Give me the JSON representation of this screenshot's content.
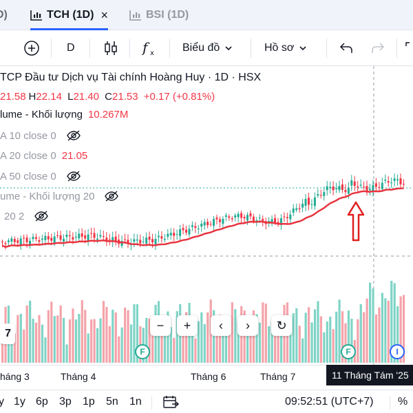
{
  "tabs": [
    {
      "label": "D)",
      "state": "partial"
    },
    {
      "label": "TCH (1D)",
      "state": "active",
      "close": "×"
    },
    {
      "label": "BSI (1D)",
      "state": "inactive"
    }
  ],
  "toolbar": {
    "interval": "D",
    "chart_type_label": "Biểu đồ",
    "profile_label": "Hồ sơ"
  },
  "legend": {
    "title": "TCP Đầu tư Dịch vụ Tài chính Hoàng Huy · 1D · HSX",
    "ohlc": {
      "open_value": "21.58",
      "high_key": "H",
      "high_value": "22.14",
      "low_key": "L",
      "low_value": "21.40",
      "close_key": "C",
      "close_value": "21.53",
      "change": "+0.17 (+0.81%)"
    },
    "indicators": [
      {
        "name": "lume - Khối lượng",
        "value": "10.267M",
        "style": "dark",
        "eye": false
      },
      {
        "name": "A 10 close 0",
        "value": "",
        "style": "muted",
        "eye": true
      },
      {
        "name": "A 20 close 0",
        "value": "21.05",
        "style": "muted",
        "eye": false
      },
      {
        "name": "A 50 close 0",
        "value": "",
        "style": "muted",
        "eye": true
      },
      {
        "name": "ume - Khối lượng 20",
        "value": "",
        "style": "muted",
        "eye": true
      },
      {
        "name": "20 2",
        "value": "",
        "style": "muted",
        "eye": true
      }
    ]
  },
  "controls": {
    "zoom_out": "−",
    "zoom_in": "+",
    "prev": "‹",
    "next": "›",
    "reset": "↻"
  },
  "logo": {
    "text": "7"
  },
  "badges": [
    {
      "letter": "F",
      "type": "f"
    },
    {
      "letter": "F",
      "type": "f"
    },
    {
      "letter": "I",
      "type": "i"
    }
  ],
  "time_axis": {
    "labels": [
      "háng 3",
      "Tháng 4",
      "Tháng 6",
      "Tháng 7"
    ],
    "crosshair_date": "11 Tháng Tám '25"
  },
  "bottom_bar": {
    "ranges": [
      "y",
      "1y",
      "6p",
      "3p",
      "1p",
      "5n",
      "1n"
    ],
    "clock": "09:52:51 (UTC+7)",
    "percent": "%"
  },
  "colors": {
    "up": "#22ab94",
    "down": "#f23645",
    "ma": "#e8343f",
    "accent": "#2962ff",
    "arrow": "#e01e1e"
  },
  "icons": [
    "candle-chart-icon",
    "plus-circle-icon",
    "candles-icon",
    "fx-icon",
    "undo-icon",
    "redo-icon",
    "fullscreen-icon",
    "eye-off-icon",
    "calendar-range-icon",
    "up-arrow-icon"
  ]
}
